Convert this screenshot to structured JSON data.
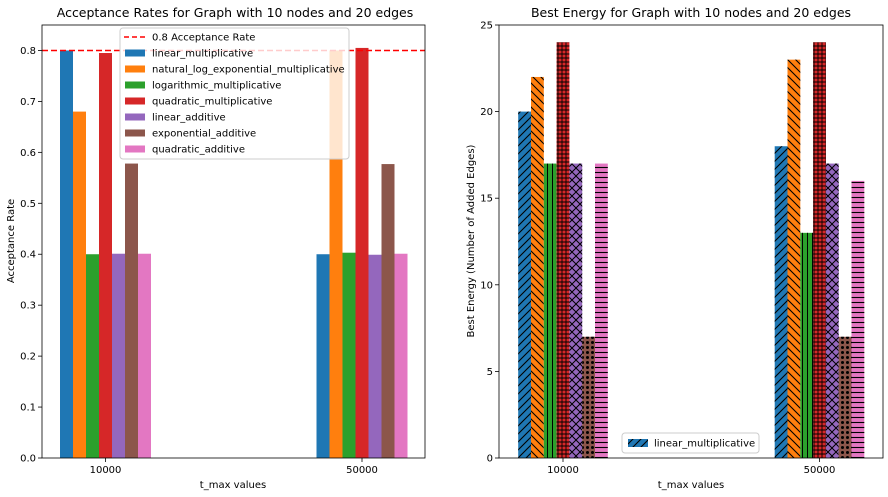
{
  "chart_data": [
    {
      "type": "bar",
      "title": "Acceptance Rates for Graph with 10 nodes and 20 edges",
      "xlabel": "t_max values",
      "ylabel": "Acceptance Rate",
      "categories": [
        "10000",
        "50000"
      ],
      "ylim": [
        0,
        0.85
      ],
      "yticks": [
        0.0,
        0.1,
        0.2,
        0.3,
        0.4,
        0.5,
        0.6,
        0.7,
        0.8
      ],
      "ytick_labels": [
        "0.0",
        "0.1",
        "0.2",
        "0.3",
        "0.4",
        "0.5",
        "0.6",
        "0.7",
        "0.8"
      ],
      "reference_line": {
        "y": 0.8,
        "label": "0.8 Acceptance Rate",
        "color": "#ff0000",
        "style": "dashed"
      },
      "grid": false,
      "legend_position": "top-center",
      "series": [
        {
          "name": "linear_multiplicative",
          "color": "#1f77b4",
          "values": [
            0.8,
            0.4
          ]
        },
        {
          "name": "natural_log_exponential_multiplicative",
          "color": "#ff7f0e",
          "values": [
            0.68,
            0.8
          ]
        },
        {
          "name": "logarithmic_multiplicative",
          "color": "#2ca02c",
          "values": [
            0.4,
            0.403
          ]
        },
        {
          "name": "quadratic_multiplicative",
          "color": "#d62728",
          "values": [
            0.795,
            0.805
          ]
        },
        {
          "name": "linear_additive",
          "color": "#9467bd",
          "values": [
            0.401,
            0.399
          ]
        },
        {
          "name": "exponential_additive",
          "color": "#8c564b",
          "values": [
            0.578,
            0.577
          ]
        },
        {
          "name": "quadratic_additive",
          "color": "#e377c2",
          "values": [
            0.401,
            0.401
          ]
        }
      ]
    },
    {
      "type": "bar",
      "title": "Best Energy for Graph with 10 nodes and 20 edges",
      "xlabel": "t_max values",
      "ylabel": "Best Energy (Number of Added Edges)",
      "categories": [
        "10000",
        "50000"
      ],
      "ylim": [
        0,
        25
      ],
      "yticks": [
        0,
        5,
        10,
        15,
        20,
        25
      ],
      "ytick_labels": [
        "0",
        "5",
        "10",
        "15",
        "20",
        "25"
      ],
      "grid": false,
      "legend_position": "lower-center",
      "legend_entries": [
        "linear_multiplicative"
      ],
      "series": [
        {
          "name": "linear_multiplicative",
          "color": "#1f77b4",
          "hatch": "diagonal",
          "values": [
            20,
            18
          ]
        },
        {
          "name": "natural_log_exponential_multiplicative",
          "color": "#ff7f0e",
          "hatch": "back-diagonal",
          "values": [
            22,
            23
          ]
        },
        {
          "name": "logarithmic_multiplicative",
          "color": "#2ca02c",
          "hatch": "vertical",
          "values": [
            17,
            13
          ]
        },
        {
          "name": "quadratic_multiplicative",
          "color": "#d62728",
          "hatch": "grid",
          "values": [
            24,
            24
          ]
        },
        {
          "name": "linear_additive",
          "color": "#9467bd",
          "hatch": "crosshatch",
          "values": [
            17,
            17
          ]
        },
        {
          "name": "exponential_additive",
          "color": "#8c564b",
          "hatch": "dots",
          "values": [
            7,
            7
          ]
        },
        {
          "name": "quadratic_additive",
          "color": "#e377c2",
          "hatch": "horizontal",
          "values": [
            17,
            16
          ]
        }
      ]
    }
  ]
}
